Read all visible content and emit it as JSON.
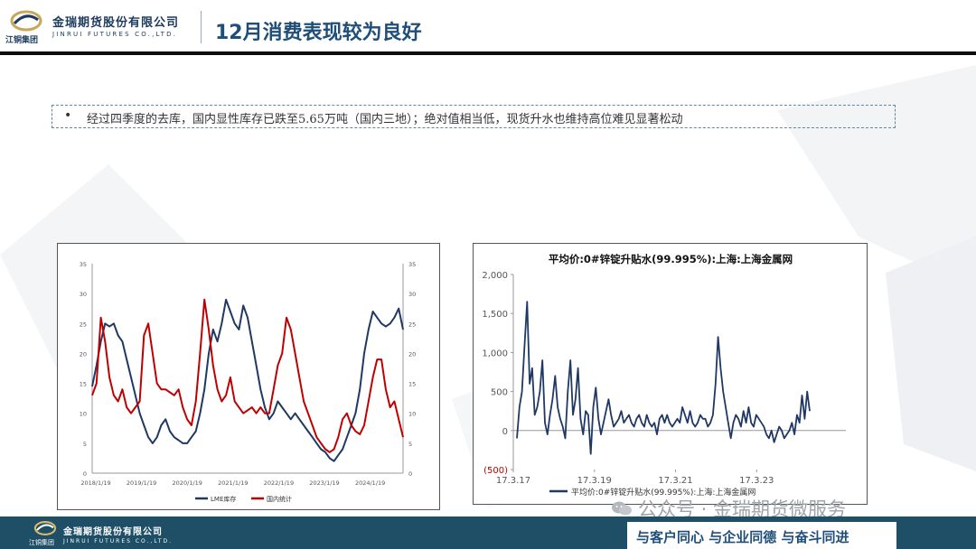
{
  "header": {
    "logo_group_text": "江铜集团",
    "company_cn": "金瑞期货股份有限公司",
    "company_en": "JINRUI FUTURES CO.,LTD.",
    "title": "12月消费表现较为良好"
  },
  "bullet": {
    "marker": "•",
    "text": "经过四季度的去库，国内显性库存已跌至5.65万吨（国内三地）；绝对值相当低，现货升水也维持高位难见显著松动"
  },
  "chart_data": [
    {
      "type": "line",
      "title": "",
      "x_tick_labels": [
        "2018/1/19",
        "2019/1/19",
        "2020/1/19",
        "2021/1/19",
        "2022/1/19",
        "2023/1/19",
        "2024/1/19"
      ],
      "y_left_ticks": [
        "35",
        "30",
        "25",
        "20",
        "15",
        "10",
        "5",
        "0"
      ],
      "y_right_ticks": [
        "35",
        "30",
        "25",
        "20",
        "15",
        "10",
        "5",
        "0"
      ],
      "ylim": [
        0,
        35
      ],
      "legend_position": "bottom",
      "series": [
        {
          "name": "LME库存",
          "color": "#1f3864",
          "values": [
            14.5,
            18,
            22,
            25,
            24.5,
            25,
            23,
            22,
            19,
            16,
            13,
            10,
            8,
            6,
            5,
            6,
            8,
            9,
            7,
            6,
            5.5,
            5,
            5,
            6,
            7,
            10,
            14,
            20,
            24,
            22,
            25,
            29,
            27,
            25,
            24,
            28,
            26,
            22,
            18,
            14,
            11,
            9,
            10,
            12,
            11,
            10,
            9,
            10,
            9,
            8,
            7,
            6,
            5,
            4,
            3.5,
            2.5,
            2,
            3,
            4,
            6,
            8,
            10,
            14,
            20,
            24,
            27,
            26,
            25,
            24.5,
            25,
            26,
            27.5,
            24
          ]
        },
        {
          "name": "国内统计",
          "color": "#c00000",
          "values": [
            13,
            15,
            26,
            22,
            16,
            13,
            12,
            14,
            11,
            10,
            11,
            12,
            23,
            25,
            20,
            15,
            14,
            14,
            13.5,
            13,
            14,
            11,
            9,
            8,
            12,
            20,
            29,
            24,
            18,
            14,
            12,
            13,
            16,
            12,
            11,
            10,
            10.5,
            11,
            10,
            11,
            10,
            10,
            14,
            18,
            20,
            26,
            24,
            20,
            16,
            12,
            10,
            8,
            6,
            5,
            4,
            3.5,
            4,
            6,
            9,
            10,
            8,
            7,
            6.5,
            8,
            12,
            16,
            19,
            19,
            14,
            11,
            12,
            9,
            6
          ]
        }
      ]
    },
    {
      "type": "line",
      "title": "平均价:0#锌锭升贴水(99.995%):上海:上海金属网",
      "x_tick_labels": [
        "17.3.17",
        "17.3.19",
        "17.3.21",
        "17.3.23"
      ],
      "y_ticks": [
        "2,000",
        "1,500",
        "1,000",
        "500",
        "0",
        "(500)"
      ],
      "ylim": [
        -500,
        2000
      ],
      "legend_position": "bottom",
      "series": [
        {
          "name": "平均价:0#锌锭升贴水(99.995%):上海:上海金属网",
          "color": "#1f3864",
          "values": [
            -100,
            300,
            500,
            1100,
            1650,
            600,
            800,
            200,
            300,
            500,
            900,
            100,
            -50,
            200,
            400,
            700,
            300,
            150,
            50,
            -100,
            500,
            900,
            200,
            400,
            800,
            150,
            -50,
            250,
            200,
            -300,
            300,
            550,
            150,
            -50,
            100,
            250,
            400,
            200,
            50,
            100,
            150,
            250,
            100,
            150,
            200,
            100,
            50,
            150,
            200,
            100,
            50,
            200,
            100,
            50,
            100,
            -50,
            150,
            200,
            100,
            200,
            100,
            50,
            100,
            150,
            100,
            300,
            200,
            100,
            250,
            100,
            50,
            100,
            200,
            150,
            150,
            50,
            100,
            200,
            600,
            1200,
            800,
            500,
            300,
            100,
            -100,
            100,
            200,
            150,
            50,
            250,
            100,
            300,
            100,
            50,
            200,
            150,
            100,
            50,
            -50,
            -100,
            0,
            -150,
            -50,
            50,
            0,
            -100,
            -50,
            0,
            100,
            -50,
            200,
            100,
            450,
            150,
            500,
            250
          ]
        }
      ]
    }
  ],
  "footer": {
    "logo_group_text": "江铜集团",
    "company_cn": "金瑞期货股份有限公司",
    "company_en": "JINRUI FUTURES CO.,LTD.",
    "slogan": "与客户同心  与企业同德  与奋斗同进"
  },
  "watermark": {
    "text": "公众号 · 金瑞期货微服务",
    "icon": "wechat-icon"
  }
}
